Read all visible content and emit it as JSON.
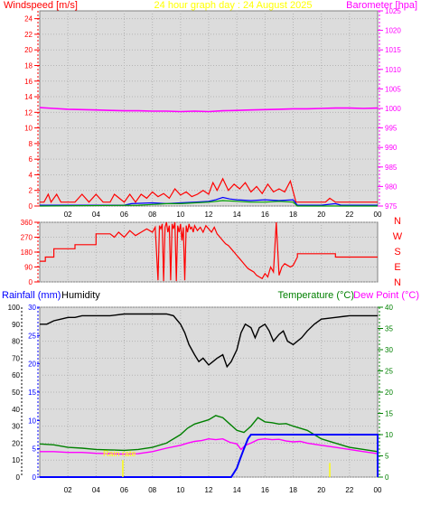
{
  "header": {
    "left_title": "Windspeed [m/s]",
    "center_title": "24 hour graph day : 24 August 2025",
    "right_title": "Barometer [hpa]"
  },
  "colors": {
    "windspeed_title": "#ff0000",
    "center_title": "#ffff00",
    "barometer": "#ff00ff",
    "gust": "#ff0000",
    "wind_avg": "#0000ff",
    "wind_other": "#00a000",
    "direction": "#ff0000",
    "humidity": "#000000",
    "temperature": "#008000",
    "dewpoint": "#ff00ff",
    "rainfall": "#0000ff",
    "rainrate": "#ffff00",
    "panel_bg": "#dcdcdc"
  },
  "chart_data": [
    {
      "type": "line",
      "panel": "wind-barometer",
      "ylabel_left": "Windspeed [m/s]",
      "ylabel_right": "Barometer [hpa]",
      "ylim_left": [
        0,
        25
      ],
      "ylim_right": [
        975,
        1025
      ],
      "yticks_left": [
        "0",
        "2",
        "4",
        "6",
        "8",
        "10",
        "12",
        "14",
        "16",
        "18",
        "20",
        "22",
        "24"
      ],
      "yticks_right": [
        "975",
        "980",
        "985",
        "990",
        "995",
        "1000",
        "1005",
        "1010",
        "1015",
        "1020",
        "1025"
      ],
      "xlim": [
        0,
        24
      ],
      "xticks": [
        "02",
        "04",
        "06",
        "08",
        "10",
        "12",
        "14",
        "16",
        "18",
        "20",
        "22",
        "00"
      ],
      "grid": true,
      "series": [
        {
          "key": "barometer",
          "axis": "right",
          "x": [
            0,
            1,
            2,
            3,
            4,
            5,
            6,
            7,
            8,
            9,
            10,
            11,
            12,
            13,
            14,
            15,
            16,
            17,
            18,
            19,
            20,
            21,
            22,
            23,
            24
          ],
          "values": [
            1000.2,
            1000.0,
            999.8,
            999.7,
            999.6,
            999.5,
            999.4,
            999.4,
            999.3,
            999.3,
            999.2,
            999.3,
            999.2,
            999.4,
            999.5,
            999.6,
            999.7,
            999.8,
            999.9,
            999.9,
            1000.0,
            1000.1,
            1000.1,
            1000.0,
            1000.1
          ]
        },
        {
          "key": "gust",
          "axis": "left",
          "x": [
            0,
            0.3,
            0.6,
            0.8,
            1.2,
            1.5,
            2.5,
            3.0,
            3.5,
            4.0,
            4.5,
            5.0,
            5.3,
            6.0,
            6.4,
            6.8,
            7.2,
            7.6,
            8.0,
            8.4,
            8.8,
            9.2,
            9.6,
            10.0,
            10.4,
            10.8,
            11.2,
            11.6,
            12.0,
            12.3,
            12.6,
            13.0,
            13.4,
            13.8,
            14.2,
            14.6,
            15.0,
            15.4,
            15.8,
            16.2,
            16.6,
            17.0,
            17.4,
            17.8,
            18.2,
            18.6,
            20.3,
            20.6,
            21.0,
            21.4,
            24.0
          ],
          "values": [
            0.5,
            0.5,
            1.5,
            0.5,
            1.5,
            0.5,
            0.5,
            1.5,
            0.5,
            1.5,
            0.5,
            0.5,
            1.5,
            0.5,
            1.5,
            0.5,
            1.5,
            1.0,
            1.8,
            1.2,
            1.6,
            1.0,
            2.2,
            1.4,
            1.8,
            1.2,
            1.5,
            2.0,
            1.5,
            3.0,
            2.0,
            3.5,
            2.0,
            2.8,
            2.2,
            3.0,
            1.8,
            2.5,
            1.6,
            2.8,
            1.8,
            2.2,
            1.8,
            3.2,
            0.5,
            0.5,
            0.5,
            1.0,
            0.5,
            0.5,
            0.5
          ]
        },
        {
          "key": "wind_avg",
          "axis": "left",
          "x": [
            0,
            6.0,
            6.5,
            8.0,
            9.0,
            10.0,
            11.0,
            12.0,
            12.5,
            13.0,
            13.5,
            14.0,
            15.0,
            16.0,
            17.0,
            18.0,
            18.3,
            20.0,
            21.0,
            21.4,
            24.0
          ],
          "values": [
            0.1,
            0.1,
            0.3,
            0.4,
            0.3,
            0.4,
            0.5,
            0.6,
            0.8,
            1.1,
            0.9,
            0.8,
            0.7,
            0.8,
            0.7,
            0.8,
            0.1,
            0.1,
            0.3,
            0.1,
            0.1
          ]
        },
        {
          "key": "wind_other",
          "axis": "left",
          "x": [
            0,
            7.0,
            8.0,
            9.0,
            10.0,
            11.0,
            12.0,
            13.0,
            14.0,
            15.0,
            16.0,
            17.0,
            18.0,
            18.3,
            24.0
          ],
          "values": [
            0.0,
            0.1,
            0.2,
            0.3,
            0.3,
            0.4,
            0.5,
            0.7,
            0.6,
            0.5,
            0.5,
            0.6,
            0.5,
            0.0,
            0.0
          ]
        }
      ]
    },
    {
      "type": "line",
      "panel": "wind-direction",
      "ylim": [
        0,
        360
      ],
      "yticks": [
        "0",
        "90",
        "180",
        "270",
        "360"
      ],
      "compass_labels": [
        "N",
        "W",
        "S",
        "E",
        "N"
      ],
      "xlim": [
        0,
        24
      ],
      "grid": true,
      "series": [
        {
          "key": "direction",
          "x": [
            0,
            0.4,
            0.4,
            1.0,
            1.0,
            2.5,
            2.5,
            4.0,
            4.0,
            5.0,
            5.3,
            5.6,
            6.0,
            6.4,
            6.8,
            7.2,
            7.6,
            8.0,
            8.2,
            8.4,
            8.5,
            8.6,
            8.7,
            8.8,
            8.9,
            9.0,
            9.1,
            9.2,
            9.3,
            9.4,
            9.5,
            9.6,
            9.7,
            9.8,
            9.9,
            10.0,
            10.1,
            10.2,
            10.3,
            10.4,
            10.5,
            10.6,
            10.7,
            10.8,
            10.9,
            11.0,
            11.2,
            11.4,
            11.6,
            11.8,
            12.0,
            12.2,
            12.4,
            12.6,
            12.8,
            13.0,
            13.2,
            13.4,
            13.6,
            13.8,
            14.0,
            14.2,
            14.4,
            14.6,
            14.8,
            15.0,
            15.2,
            15.4,
            15.6,
            15.8,
            16.0,
            16.2,
            16.4,
            16.6,
            16.8,
            17.0,
            17.2,
            17.4,
            17.6,
            17.8,
            18.0,
            18.3,
            18.3,
            21.0,
            21.0,
            24.0
          ],
          "values": [
            125,
            125,
            150,
            150,
            200,
            200,
            225,
            225,
            290,
            290,
            270,
            300,
            270,
            310,
            280,
            300,
            320,
            300,
            330,
            10,
            340,
            320,
            350,
            5,
            330,
            360,
            300,
            340,
            10,
            350,
            320,
            360,
            5,
            340,
            300,
            350,
            250,
            330,
            10,
            340,
            300,
            350,
            320,
            330,
            300,
            340,
            310,
            330,
            300,
            340,
            320,
            300,
            330,
            290,
            270,
            250,
            230,
            220,
            200,
            180,
            160,
            140,
            120,
            100,
            80,
            70,
            60,
            40,
            30,
            20,
            50,
            30,
            90,
            60,
            360,
            40,
            90,
            110,
            100,
            90,
            100,
            150,
            170,
            170,
            150,
            150
          ]
        }
      ]
    },
    {
      "type": "line",
      "panel": "temperature-humidity-rain",
      "ylabel_rain": "Rainfall (mm)",
      "ylabel_humidity": "Humidity",
      "ylabel_temp": "Temperature (°C)",
      "ylabel_dew": "Dew Point (°C)",
      "ylim_humidity": [
        0,
        100
      ],
      "yticks_humidity": [
        "0",
        "10",
        "20",
        "30",
        "40",
        "50",
        "60",
        "70",
        "80",
        "90",
        "100"
      ],
      "ylim_rain": [
        0,
        30
      ],
      "yticks_rain": [
        "0",
        "5",
        "10",
        "15",
        "20",
        "25",
        "30"
      ],
      "ylim_temp": [
        0,
        40
      ],
      "yticks_temp": [
        "0",
        "5",
        "10",
        "15",
        "20",
        "25",
        "30",
        "35",
        "40"
      ],
      "xlim": [
        0,
        24
      ],
      "xticks": [
        "02",
        "04",
        "06",
        "08",
        "10",
        "12",
        "14",
        "16",
        "18",
        "20",
        "22",
        "00"
      ],
      "grid": true,
      "annotation": "Rain rate",
      "series": [
        {
          "key": "humidity",
          "axis": "humidity",
          "x": [
            0,
            0.5,
            1,
            1.5,
            2,
            2.5,
            3,
            4,
            5,
            6,
            7,
            8,
            9,
            9.5,
            10,
            10.3,
            10.6,
            11,
            11.3,
            11.6,
            12,
            12.3,
            12.6,
            13,
            13.3,
            13.6,
            14,
            14.3,
            14.6,
            15,
            15.3,
            15.6,
            16,
            16.3,
            16.6,
            17,
            17.3,
            17.6,
            18,
            18.3,
            18.6,
            19,
            19.5,
            20,
            21,
            22,
            23,
            24
          ],
          "values": [
            90,
            90,
            92,
            93,
            94,
            94,
            95,
            95,
            95,
            96,
            96,
            96,
            96,
            95,
            90,
            85,
            78,
            72,
            68,
            70,
            66,
            68,
            70,
            72,
            65,
            68,
            75,
            85,
            90,
            88,
            82,
            88,
            90,
            86,
            80,
            84,
            86,
            80,
            78,
            80,
            82,
            86,
            90,
            93,
            94,
            95,
            95,
            95
          ]
        },
        {
          "key": "temperature",
          "axis": "temp",
          "x": [
            0,
            1,
            2,
            3,
            4,
            5,
            6,
            7,
            8,
            9,
            10,
            10.5,
            11,
            11.5,
            12,
            12.5,
            13,
            13.5,
            14,
            14.5,
            15,
            15.5,
            16,
            16.5,
            17,
            17.5,
            18,
            18.5,
            19,
            20,
            21,
            22,
            23,
            24
          ],
          "values": [
            7.8,
            7.6,
            7.0,
            6.8,
            6.5,
            6.4,
            6.3,
            6.5,
            7.0,
            8.0,
            10.0,
            11.5,
            12.5,
            13.0,
            13.5,
            14.5,
            14.0,
            12.5,
            11.0,
            10.5,
            12.0,
            14.0,
            13.0,
            12.8,
            12.5,
            12.6,
            12.0,
            11.5,
            11.0,
            9.0,
            8.0,
            7.0,
            6.5,
            6.0
          ]
        },
        {
          "key": "dewpoint",
          "axis": "temp",
          "x": [
            0,
            1,
            2,
            3,
            4,
            5,
            6,
            7,
            8,
            9,
            10,
            10.5,
            11,
            11.5,
            12,
            12.5,
            13,
            13.5,
            14,
            14.3,
            14.6,
            15,
            15.5,
            16,
            16.5,
            17,
            17.5,
            18,
            18.5,
            19,
            20,
            21,
            22,
            23,
            24
          ],
          "values": [
            6.0,
            6.0,
            5.8,
            5.8,
            5.6,
            5.5,
            5.4,
            5.5,
            6.0,
            6.8,
            7.5,
            8.0,
            8.4,
            8.6,
            9.0,
            8.8,
            9.0,
            8.2,
            7.8,
            6.5,
            7.5,
            8.0,
            8.8,
            9.0,
            8.8,
            8.9,
            8.5,
            8.3,
            8.4,
            8.0,
            7.5,
            7.0,
            6.5,
            6.0,
            5.5
          ]
        },
        {
          "key": "rainfall",
          "axis": "rain",
          "x": [
            0,
            13.6,
            13.8,
            14.0,
            14.2,
            14.5,
            14.8,
            15.0,
            24.0,
            24.0
          ],
          "values": [
            0,
            0,
            0.8,
            1.6,
            3.0,
            5.0,
            6.8,
            7.5,
            7.5,
            0
          ]
        },
        {
          "key": "rainrate",
          "axis": "rain",
          "x": [
            5.9,
            20.6
          ],
          "values": [
            3.0,
            2.5
          ]
        }
      ]
    }
  ]
}
